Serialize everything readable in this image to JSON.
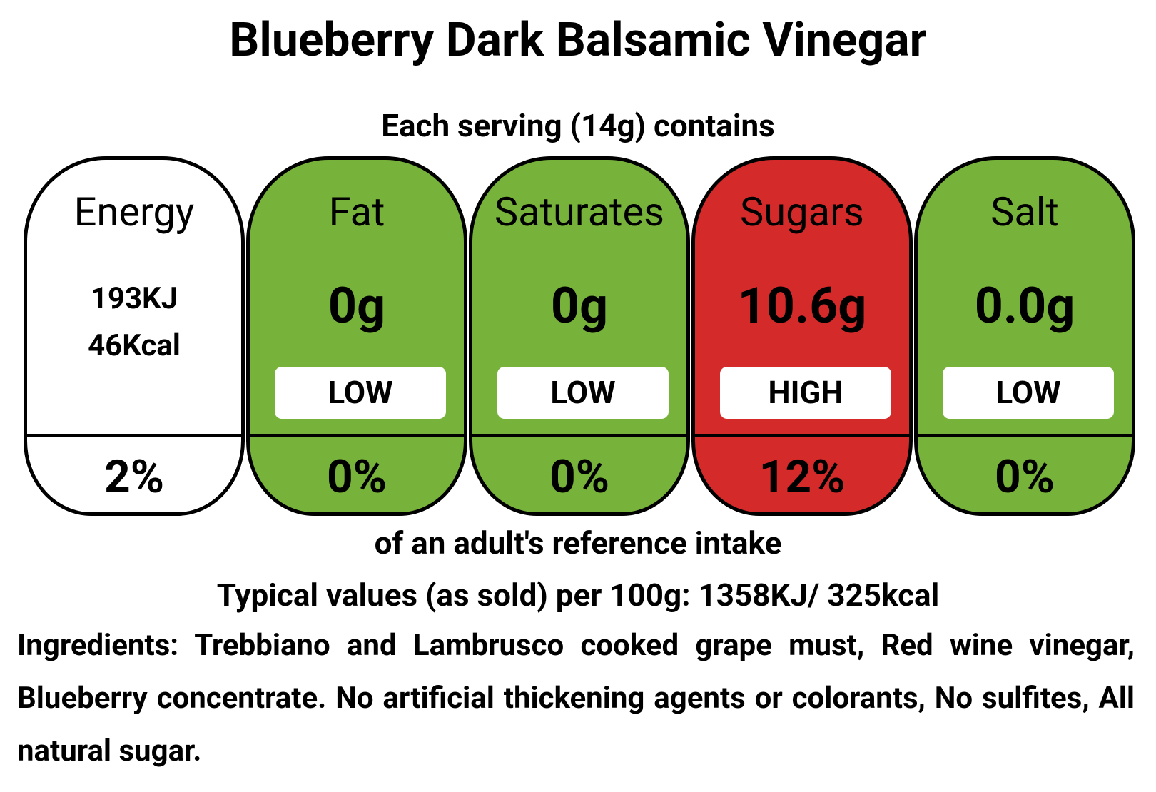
{
  "header": {
    "title": "Blueberry Dark Balsamic Vinegar",
    "serving": "Each serving (14g) contains"
  },
  "nutrients": [
    {
      "name": "Energy",
      "values": [
        "193KJ",
        "46Kcal"
      ],
      "percent": "2%",
      "color": "#ffffff"
    },
    {
      "name": "Fat",
      "values": [
        "0g"
      ],
      "level": "LOW",
      "percent": "0%",
      "color": "#77b23a"
    },
    {
      "name": "Saturates",
      "values": [
        "0g"
      ],
      "level": "LOW",
      "percent": "0%",
      "color": "#77b23a"
    },
    {
      "name": "Sugars",
      "values": [
        "10.6g"
      ],
      "level": "HIGH",
      "percent": "12%",
      "color": "#d42a2a"
    },
    {
      "name": "Salt",
      "values": [
        "0.0g"
      ],
      "level": "LOW",
      "percent": "0%",
      "color": "#77b23a"
    }
  ],
  "footer": {
    "reference": "of an adult's reference intake",
    "typical": "Typical values (as sold) per 100g: 1358KJ/ 325kcal",
    "ingredients": "Ingredients: Trebbiano and Lambrusco cooked grape must, Red wine vinegar, Blueberry concentrate. No artificial thickening agents or colorants, No sulfites, All natural sugar."
  }
}
